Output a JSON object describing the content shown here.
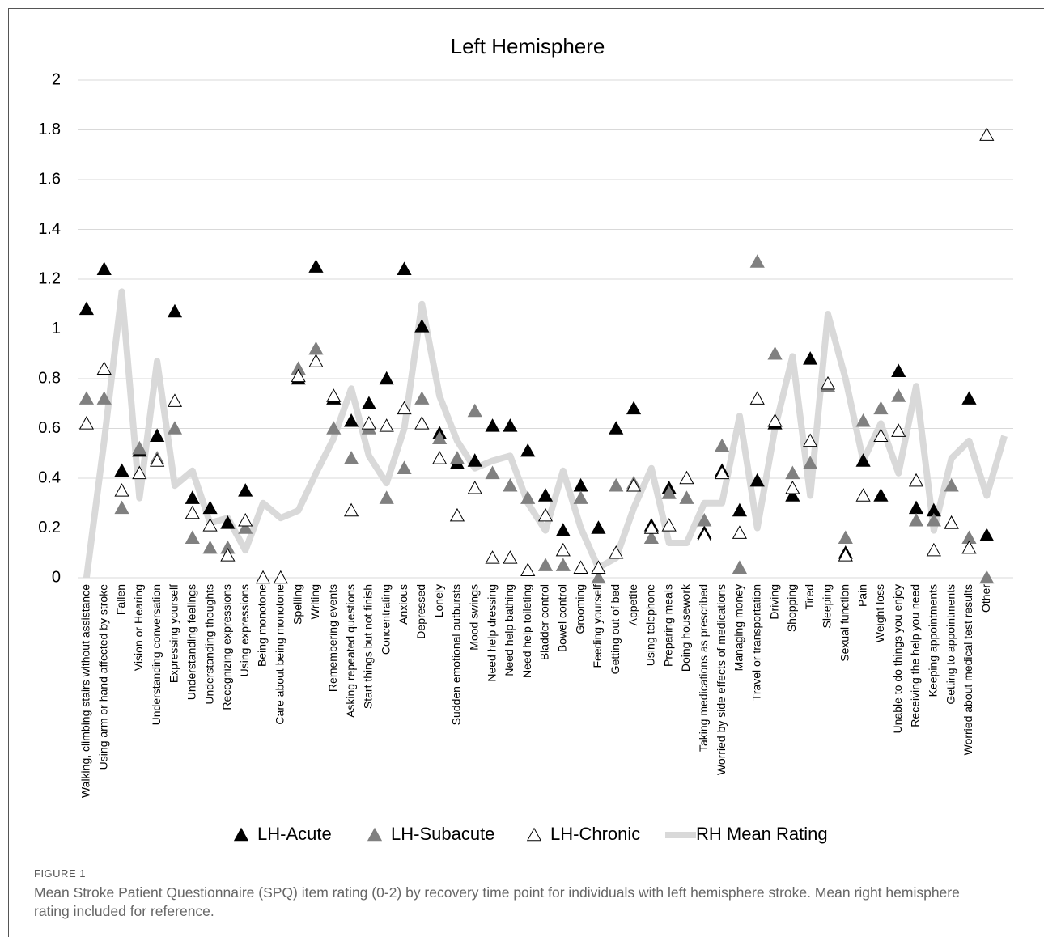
{
  "chart_data": {
    "type": "line",
    "title": "Left Hemisphere",
    "categories": [
      "Walking, climbing stairs without assistance",
      "Using arm or hand affected by stroke",
      "Fallen",
      "Vision or Hearing",
      "Understanding conversation",
      "Expressing yourself",
      "Understanding feelings",
      "Understanding thoughts",
      "Recognizing expressions",
      "Using expressions",
      "Being monotone",
      "Care about being monotone",
      "Spelling",
      "Writing",
      "Remembering events",
      "Asking repeated questions",
      "Start things but not finish",
      "Concentrating",
      "Anxious",
      "Depressed",
      "Lonely",
      "Sudden emotional outbursts",
      "Mood swings",
      "Need help dressing",
      "Need help bathing",
      "Need help toileting",
      "Bladder control",
      "Bowel control",
      "Grooming",
      "Feeding yourself",
      "Getting out of bed",
      "Appetite",
      "Using telephone",
      "Preparing meals",
      "Doing housework",
      "Taking medications as prescribed",
      "Worried by side effects of medications",
      "Managing money",
      "Travel or transportation",
      "Driving",
      "Shopping",
      "Tired",
      "Sleeping",
      "Sexual function",
      "Pain",
      "Weight loss",
      "Unable to  do things you enjoy",
      "Receiving the help you need",
      "Keeping appointments",
      "Getting to appointments",
      "Worried about medical test results",
      "Other",
      null
    ],
    "series": [
      {
        "name": "LH-Acute",
        "style": "triangle",
        "color": "#000000",
        "edge": "#000000",
        "values": [
          1.08,
          1.24,
          0.43,
          0.51,
          0.57,
          1.07,
          0.32,
          0.28,
          0.22,
          0.35,
          null,
          null,
          0.8,
          1.25,
          0.72,
          0.63,
          0.7,
          0.8,
          1.24,
          1.01,
          0.58,
          0.46,
          0.47,
          0.61,
          0.61,
          0.51,
          0.33,
          0.19,
          0.37,
          0.2,
          0.6,
          0.68,
          0.21,
          0.36,
          null,
          0.18,
          0.43,
          0.27,
          0.39,
          0.62,
          0.33,
          0.88,
          0.77,
          0.1,
          0.47,
          0.33,
          0.83,
          0.28,
          0.27,
          0.22,
          0.72,
          0.17,
          null
        ]
      },
      {
        "name": "LH-Subacute",
        "style": "triangle",
        "color": "#808080",
        "edge": "#808080",
        "values": [
          0.72,
          0.72,
          0.28,
          0.52,
          0.48,
          0.6,
          0.16,
          0.12,
          0.12,
          0.2,
          null,
          null,
          0.84,
          0.92,
          0.6,
          0.48,
          0.6,
          0.32,
          0.44,
          0.72,
          0.56,
          0.48,
          0.67,
          0.42,
          0.37,
          0.32,
          0.05,
          0.05,
          0.32,
          0,
          0.37,
          0.38,
          0.16,
          0.34,
          0.32,
          0.23,
          0.53,
          0.04,
          1.27,
          0.9,
          0.42,
          0.46,
          0.77,
          0.16,
          0.63,
          0.68,
          0.73,
          0.23,
          0.23,
          0.37,
          0.16,
          0,
          null
        ]
      },
      {
        "name": "LH-Chronic",
        "style": "triangle",
        "color": "#ffffff",
        "edge": "#000000",
        "values": [
          0.62,
          0.84,
          0.35,
          0.42,
          0.47,
          0.71,
          0.26,
          0.21,
          0.09,
          0.23,
          0,
          0,
          0.81,
          0.87,
          0.73,
          0.27,
          0.62,
          0.61,
          0.68,
          0.62,
          0.48,
          0.25,
          0.36,
          0.08,
          0.08,
          0.03,
          0.25,
          0.11,
          0.04,
          0.04,
          0.1,
          0.37,
          0.2,
          0.21,
          0.4,
          0.17,
          0.42,
          0.18,
          0.72,
          0.63,
          0.36,
          0.55,
          0.78,
          0.09,
          0.33,
          0.57,
          0.59,
          0.39,
          0.11,
          0.22,
          0.12,
          1.78,
          null
        ]
      },
      {
        "name": "RH Mean Rating",
        "style": "line",
        "color": "#d9d9d9",
        "values": [
          0,
          0.55,
          1.15,
          0.32,
          0.87,
          0.37,
          0.43,
          0.22,
          0.24,
          0.11,
          0.3,
          0.24,
          0.27,
          0.42,
          0.56,
          0.76,
          0.49,
          0.38,
          0.6,
          1.1,
          0.73,
          0.55,
          0.44,
          0.47,
          0.49,
          0.3,
          0.19,
          0.43,
          0.2,
          0.04,
          0.08,
          0.28,
          0.44,
          0.14,
          0.14,
          0.3,
          0.3,
          0.65,
          0.2,
          0.6,
          0.89,
          0.33,
          1.06,
          0.8,
          0.47,
          0.62,
          0.42,
          0.77,
          0.19,
          0.48,
          0.55,
          0.33,
          0.57
        ]
      }
    ],
    "ylim": [
      0,
      2
    ],
    "yticks": [
      0,
      0.2,
      0.4,
      0.6,
      0.8,
      1,
      1.2,
      1.4,
      1.6,
      1.8,
      2
    ],
    "grid": true,
    "legend": "bottom"
  },
  "figure_caption": {
    "label": "FIGURE 1",
    "text": "Mean Stroke Patient Questionnaire (SPQ) item rating (0-2) by recovery time point for individuals with left hemisphere stroke. Mean right hemisphere rating included for reference."
  }
}
